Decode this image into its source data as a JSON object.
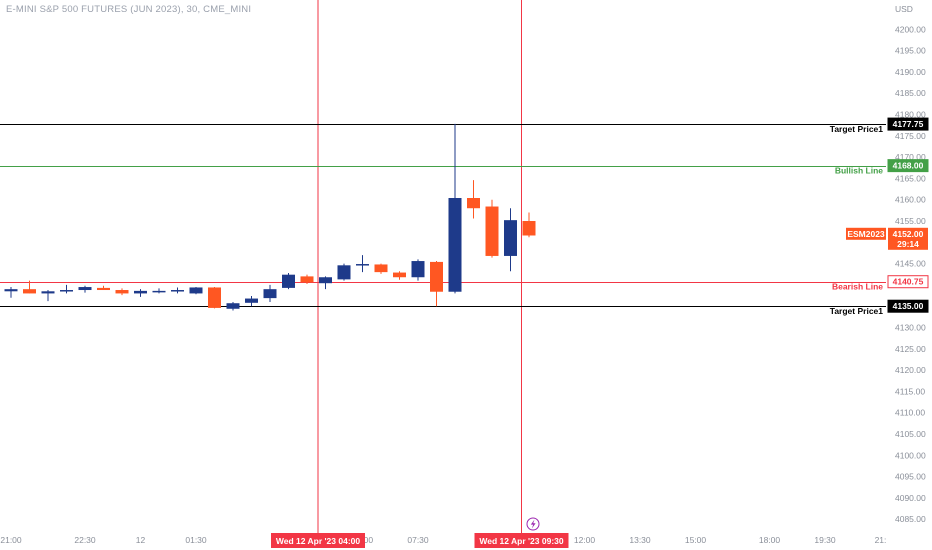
{
  "chart_title": "E-MINI S&P 500 FUTURES (JUN 2023), 30, CME_MINI",
  "currency": "USD",
  "colors": {
    "bull": "#1e3a8a",
    "bear": "#ff5722",
    "target": "#000000",
    "bullish_line": "#43a047",
    "bearish_line": "#f23645",
    "crosshair": "#f23645",
    "grid_text": "#8a8f99",
    "symbol_tag": "#ff5722"
  },
  "chart_data": {
    "type": "candlestick",
    "ylim": [
      4082,
      4205
    ],
    "y_ticks": [
      "4085.00",
      "4090.00",
      "4095.00",
      "4100.00",
      "4105.00",
      "4110.00",
      "4115.00",
      "4120.00",
      "4125.00",
      "4130.00",
      "4135.00",
      "4140.00",
      "4145.00",
      "4150.00",
      "4155.00",
      "4160.00",
      "4165.00",
      "4170.00",
      "4175.00",
      "4180.00",
      "4185.00",
      "4190.00",
      "4195.00",
      "4200.00"
    ],
    "x_ticks": [
      {
        "label": "21:00",
        "index": 0
      },
      {
        "label": "22:30",
        "index": 4
      },
      {
        "label": "12",
        "index": 7
      },
      {
        "label": "01:30",
        "index": 10
      },
      {
        "label": "06:00",
        "index": 19
      },
      {
        "label": "07:30",
        "index": 22
      },
      {
        "label": "12:00",
        "index": 31
      },
      {
        "label": "13:30",
        "index": 34
      },
      {
        "label": "15:00",
        "index": 37
      },
      {
        "label": "18:00",
        "index": 41
      },
      {
        "label": "19:30",
        "index": 44
      },
      {
        "label": "21:",
        "index": 47
      }
    ],
    "candles": [
      {
        "o": 4138.5,
        "h": 4139.5,
        "l": 4137.0,
        "c": 4139.0
      },
      {
        "o": 4139.0,
        "h": 4141.0,
        "l": 4138.0,
        "c": 4138.0
      },
      {
        "o": 4138.0,
        "h": 4138.8,
        "l": 4136.2,
        "c": 4138.5
      },
      {
        "o": 4138.6,
        "h": 4140.0,
        "l": 4138.0,
        "c": 4138.8
      },
      {
        "o": 4138.8,
        "h": 4139.8,
        "l": 4138.2,
        "c": 4139.5
      },
      {
        "o": 4139.3,
        "h": 4139.8,
        "l": 4138.8,
        "c": 4138.8
      },
      {
        "o": 4138.8,
        "h": 4139.2,
        "l": 4137.6,
        "c": 4138.0
      },
      {
        "o": 4138.0,
        "h": 4139.0,
        "l": 4137.2,
        "c": 4138.6
      },
      {
        "o": 4138.3,
        "h": 4139.2,
        "l": 4138.0,
        "c": 4138.6
      },
      {
        "o": 4138.6,
        "h": 4139.4,
        "l": 4138.0,
        "c": 4138.8
      },
      {
        "o": 4138.0,
        "h": 4139.5,
        "l": 4137.8,
        "c": 4139.4
      },
      {
        "o": 4139.4,
        "h": 4139.5,
        "l": 4134.5,
        "c": 4134.6
      },
      {
        "o": 4134.4,
        "h": 4136.0,
        "l": 4134.0,
        "c": 4135.7
      },
      {
        "o": 4135.8,
        "h": 4137.4,
        "l": 4135.0,
        "c": 4136.8
      },
      {
        "o": 4136.9,
        "h": 4140.0,
        "l": 4136.0,
        "c": 4139.0
      },
      {
        "o": 4139.3,
        "h": 4142.8,
        "l": 4139.0,
        "c": 4142.4
      },
      {
        "o": 4142.0,
        "h": 4142.4,
        "l": 4140.2,
        "c": 4140.6
      },
      {
        "o": 4140.4,
        "h": 4142.0,
        "l": 4139.0,
        "c": 4141.8
      },
      {
        "o": 4141.3,
        "h": 4145.0,
        "l": 4141.0,
        "c": 4144.6
      },
      {
        "o": 4144.6,
        "h": 4147.0,
        "l": 4143.0,
        "c": 4144.9
      },
      {
        "o": 4144.8,
        "h": 4145.0,
        "l": 4142.6,
        "c": 4143.0
      },
      {
        "o": 4142.9,
        "h": 4143.2,
        "l": 4141.2,
        "c": 4141.8
      },
      {
        "o": 4141.8,
        "h": 4146.0,
        "l": 4141.0,
        "c": 4145.6
      },
      {
        "o": 4145.4,
        "h": 4145.6,
        "l": 4135.0,
        "c": 4138.4
      },
      {
        "o": 4138.4,
        "h": 4177.8,
        "l": 4138.0,
        "c": 4160.4
      },
      {
        "o": 4160.4,
        "h": 4164.6,
        "l": 4155.6,
        "c": 4158.0
      },
      {
        "o": 4158.4,
        "h": 4160.0,
        "l": 4146.4,
        "c": 4146.8
      },
      {
        "o": 4146.8,
        "h": 4158.0,
        "l": 4143.2,
        "c": 4155.2
      },
      {
        "o": 4155.0,
        "h": 4157.0,
        "l": 4151.2,
        "c": 4151.6
      }
    ]
  },
  "price_tags": {
    "target_upper": "4177.75",
    "bullish": "4168.00",
    "bearish": "4140.75",
    "target_lower": "4135.00",
    "current": "4152.00",
    "countdown": "29:14",
    "symbol": "ESM2023"
  },
  "line_labels": {
    "target_upper": "Target Price1",
    "bullish": "Bullish Line",
    "bearish": "Bearish Line",
    "target_lower": "Target Price1"
  },
  "crosshairs": [
    {
      "label": "Wed 12 Apr '23   04:00",
      "index": 16
    },
    {
      "label": "Wed 12 Apr '23   09:30",
      "index": 27
    }
  ],
  "levels": {
    "target_upper": 4177.75,
    "bullish": 4168.0,
    "bearish": 4140.75,
    "target_lower": 4135.0,
    "current": 4152.0
  }
}
